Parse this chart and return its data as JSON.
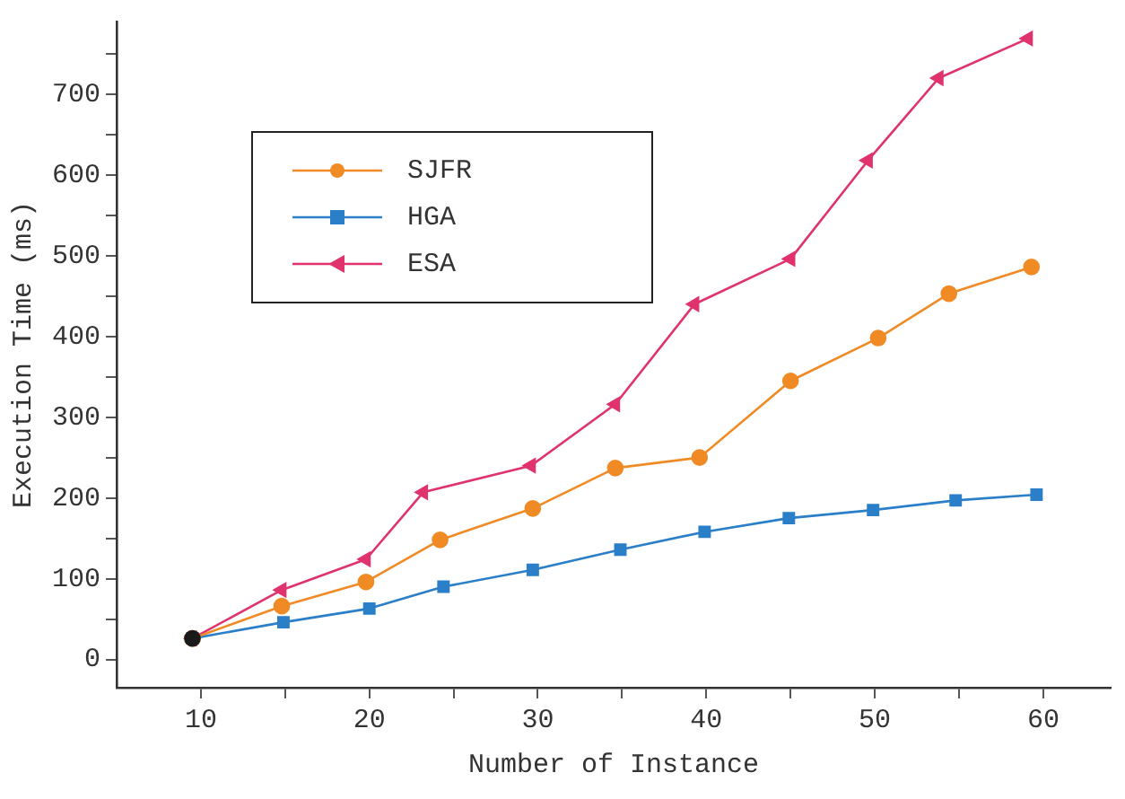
{
  "chart_data": {
    "type": "line",
    "xlabel": "Number of Instance",
    "ylabel": "Execution Time (ms)",
    "xlim": [
      5,
      64
    ],
    "ylim": [
      -35,
      790
    ],
    "xticks": [
      10,
      {
        "value": 15,
        "label": null
      },
      20,
      {
        "value": 25,
        "label": null
      },
      30,
      {
        "value": 35,
        "label": null
      },
      40,
      {
        "value": 45,
        "label": null
      },
      50,
      {
        "value": 55,
        "label": null
      },
      60
    ],
    "yticks": [
      0,
      {
        "value": 50,
        "label": null
      },
      100,
      {
        "value": 150,
        "label": null
      },
      200,
      {
        "value": 250,
        "label": null
      },
      300,
      {
        "value": 350,
        "label": null
      },
      400,
      {
        "value": 450,
        "label": null
      },
      500,
      {
        "value": 550,
        "label": null
      },
      600,
      {
        "value": 650,
        "label": null
      },
      700,
      {
        "value": 750,
        "label": null
      }
    ],
    "grid": false,
    "legend": "top left",
    "line_style": "solid",
    "series": [
      {
        "name": "SJFR",
        "color": "#f08a24",
        "marker": "circle",
        "x": [
          9.5,
          14.8,
          19.8,
          24.2,
          29.7,
          34.6,
          39.6,
          45,
          50.2,
          54.4,
          59.3
        ],
        "values": [
          26,
          66,
          96,
          148,
          187,
          237,
          250,
          345,
          398,
          453,
          486
        ]
      },
      {
        "name": "HGA",
        "color": "#2a7fc8",
        "marker": "square",
        "x": [
          9.5,
          14.9,
          20,
          24.4,
          29.7,
          34.9,
          39.9,
          44.9,
          49.9,
          54.8,
          59.6
        ],
        "values": [
          26,
          46,
          63,
          90,
          111,
          136,
          158,
          175,
          185,
          197,
          204
        ]
      },
      {
        "name": "ESA",
        "color": "#e0336e",
        "marker": "triangle",
        "x": [
          9.5,
          14.8,
          19.8,
          23.2,
          29.6,
          34.6,
          39.3,
          45,
          49.6,
          53.8,
          59.1
        ],
        "values": [
          26,
          86,
          124,
          207,
          240,
          316,
          440,
          496,
          618,
          720,
          769
        ]
      },
      {
        "type": "scatter",
        "color": "#1a1a1a",
        "marker": "circle",
        "x": [
          9.5
        ],
        "values": [
          26
        ]
      }
    ]
  }
}
